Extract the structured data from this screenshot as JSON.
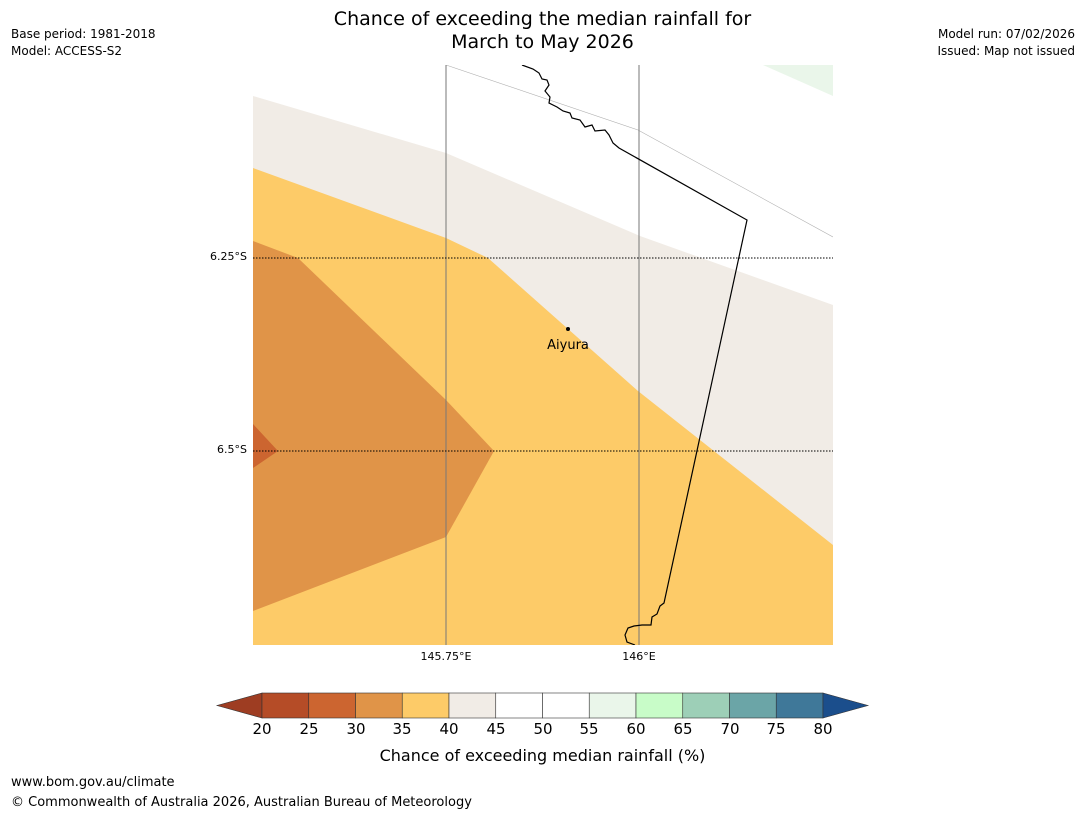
{
  "title": {
    "line1": "Chance of exceeding the median rainfall for",
    "line2": "March to May 2026"
  },
  "meta_left": {
    "base_period": "Base period: 1981-2018",
    "model": "Model: ACCESS-S2"
  },
  "meta_right": {
    "model_run": "Model run: 07/02/2026",
    "issued": "Issued: Map not issued"
  },
  "map": {
    "place_label": "Aiyura",
    "lat_labels": [
      "6.25°S",
      "6.5°S"
    ],
    "lon_labels": [
      "145.75°E",
      "146°E"
    ]
  },
  "colorbar": {
    "ticks": [
      "20",
      "25",
      "30",
      "35",
      "40",
      "45",
      "50",
      "55",
      "60",
      "65",
      "70",
      "75",
      "80"
    ],
    "colors": [
      "#9e3d22",
      "#b54c27",
      "#cc6530",
      "#e09448",
      "#fdcb68",
      "#f1ece6",
      "#ffffff",
      "#ffffff",
      "#eaf6ea",
      "#c8fcc8",
      "#9dcfb7",
      "#6ba5a7",
      "#3f7899",
      "#1b4e8c"
    ],
    "title": "Chance of exceeding median rainfall (%)"
  },
  "footer": {
    "url": "www.bom.gov.au/climate",
    "copyright": "© Commonwealth of Australia 2026, Australian Bureau of Meteorology"
  }
}
